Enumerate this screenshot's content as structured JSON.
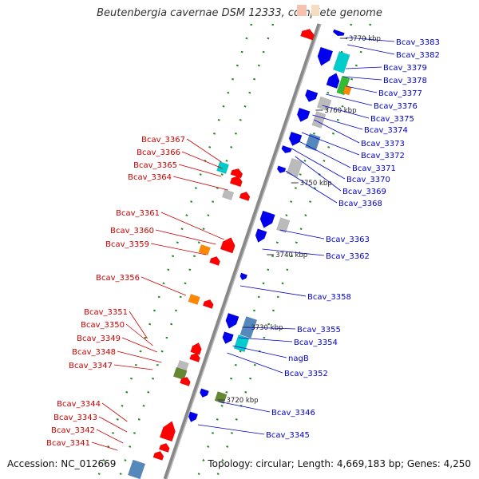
{
  "title": "Beutenbergia cavernae DSM 12333, complete genome",
  "accession": "Accession: NC_012669",
  "summary": "Topology: circular; Length: 4,669,183 bp; Genes: 4,250",
  "colors": {
    "forward_label": "#cc0000",
    "reverse_label": "#0000cc",
    "forward_gene": "#ff0000",
    "reverse_gene": "#0000ee",
    "rna": "#00cccc",
    "pseudo": "#bbbbbb",
    "other_a": "#ff8800",
    "other_b": "#668833",
    "other_c": "#5588bb",
    "gc_dot": "#228822",
    "backbone": "#888888"
  },
  "position_marks": [
    "3770 kbp",
    "3760 kbp",
    "3750 kbp",
    "3740 kbp",
    "3730 kbp",
    "3720 kbp"
  ],
  "reverse_labels": [
    "Bcav_3383",
    "Bcav_3382",
    "Bcav_3379",
    "Bcav_3378",
    "Bcav_3377",
    "Bcav_3376",
    "Bcav_3375",
    "Bcav_3374",
    "Bcav_3373",
    "Bcav_3372",
    "Bcav_3371",
    "Bcav_3370",
    "Bcav_3369",
    "Bcav_3368",
    "Bcav_3363",
    "Bcav_3362",
    "Bcav_3358",
    "Bcav_3355",
    "Bcav_3354",
    "nagB",
    "Bcav_3352",
    "Bcav_3346",
    "Bcav_3345"
  ],
  "forward_labels": [
    "Bcav_3367",
    "Bcav_3366",
    "Bcav_3365",
    "Bcav_3364",
    "Bcav_3361",
    "Bcav_3360",
    "Bcav_3359",
    "Bcav_3356",
    "Bcav_3351",
    "Bcav_3350",
    "Bcav_3349",
    "Bcav_3348",
    "Bcav_3347",
    "Bcav_3344",
    "Bcav_3343",
    "Bcav_3342",
    "Bcav_3341"
  ]
}
